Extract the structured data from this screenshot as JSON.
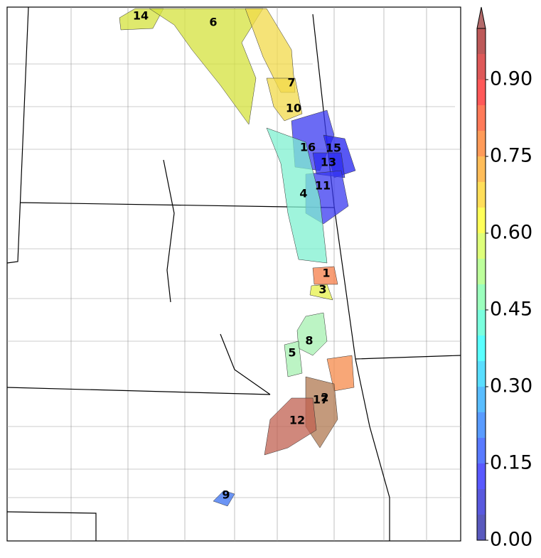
{
  "colorbar": {
    "lim": [
      0,
      1
    ],
    "ticks": [
      {
        "value": 0,
        "label": "0.00"
      },
      {
        "value": 0.15,
        "label": "0.15"
      },
      {
        "value": 0.3,
        "label": "0.30"
      },
      {
        "value": 0.45,
        "label": "0.45"
      },
      {
        "value": 0.6,
        "label": "0.60"
      },
      {
        "value": 0.75,
        "label": "0.75"
      },
      {
        "value": 0.9,
        "label": "0.90"
      }
    ]
  },
  "regions": [
    {
      "label": "14",
      "color": "#d4e23c"
    },
    {
      "label": "6",
      "color": "#d4e23c"
    },
    {
      "label": "7",
      "color": "#f2d94a"
    },
    {
      "label": "10",
      "color": "#f2d94a"
    },
    {
      "label": "16",
      "color": "#3a3af0"
    },
    {
      "label": "15",
      "color": "#2020f0"
    },
    {
      "label": "13",
      "color": "#2a2af0"
    },
    {
      "label": "11",
      "color": "#3a3af0"
    },
    {
      "label": "4",
      "color": "#7ff0d0"
    },
    {
      "label": "1",
      "color": "#f57e48"
    },
    {
      "label": "3",
      "color": "#e6f04a"
    },
    {
      "label": "8",
      "color": "#a6f0b0"
    },
    {
      "label": "5",
      "color": "#a6f0b0"
    },
    {
      "label": "2",
      "color": "#f58a4a"
    },
    {
      "label": "17",
      "color": "#b07850"
    },
    {
      "label": "12",
      "color": "#c06050"
    },
    {
      "label": "9",
      "color": "#3a70f0"
    }
  ]
}
